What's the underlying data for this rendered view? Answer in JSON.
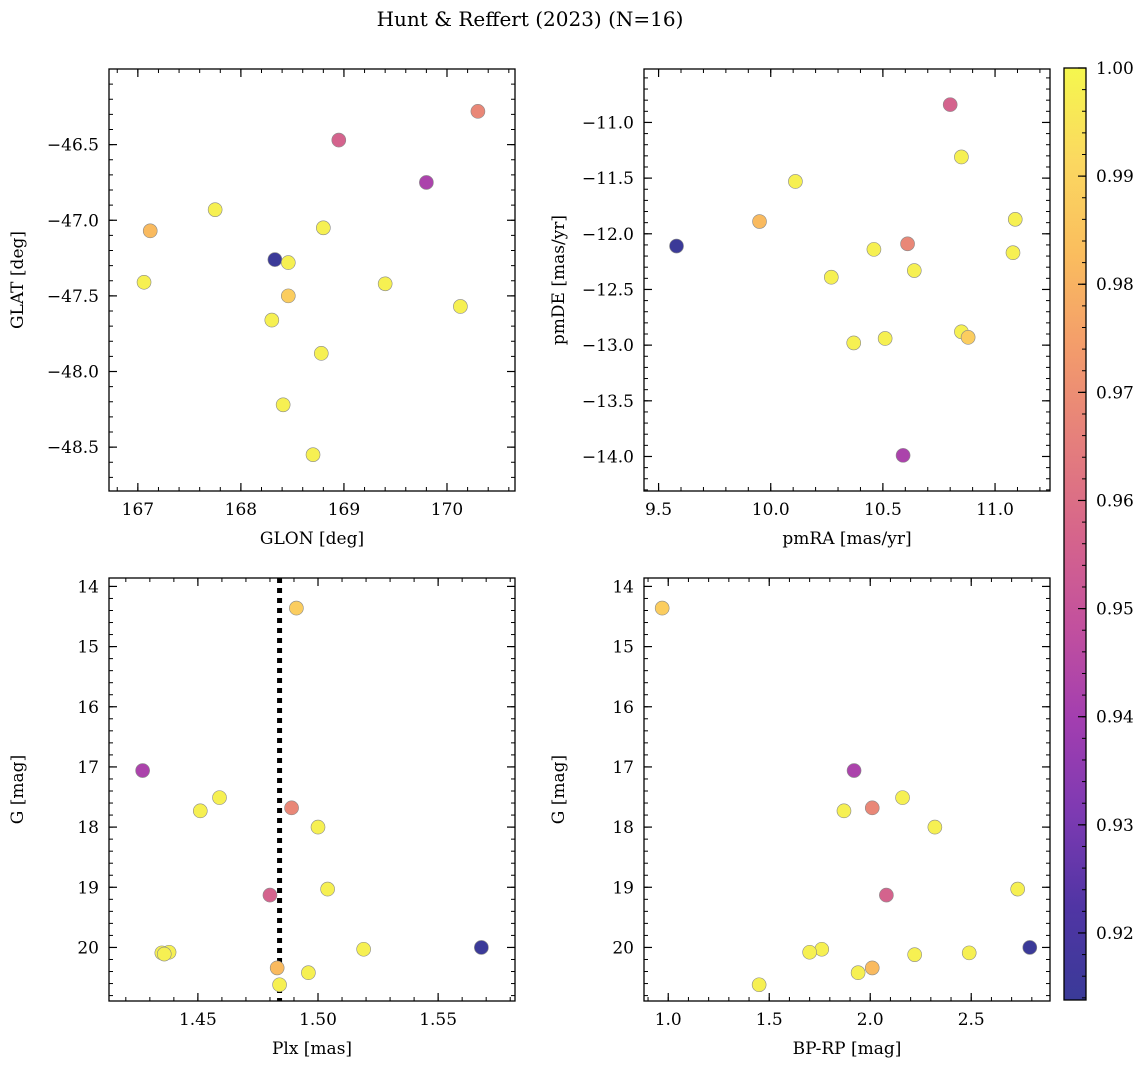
{
  "figure": {
    "title": "Hunt & Reffert (2023) (N=16)"
  },
  "colorbar": {
    "range": [
      0.9138,
      1.0
    ],
    "ticks": [
      "0.92",
      "0.93",
      "0.94",
      "0.95",
      "0.96",
      "0.97",
      "0.98",
      "0.99",
      "1.00"
    ],
    "tick_values": [
      0.92,
      0.93,
      0.94,
      0.95,
      0.96,
      0.97,
      0.98,
      0.99,
      1.0
    ],
    "colormap": "plasma (truncated)",
    "colormap_stops": [
      "#3a3a98",
      "#5035a4",
      "#7d3ab2",
      "#a23eb0",
      "#c2509e",
      "#d6658b",
      "#e57f7c",
      "#f39c6b",
      "#fabd5e",
      "#fbd860",
      "#f5f74e"
    ]
  },
  "chart_data": [
    {
      "type": "scatter",
      "xlabel": "GLON [deg]",
      "ylabel": "GLAT [deg]",
      "xlim": [
        166.72,
        170.66
      ],
      "ylim": [
        -48.79,
        -46.0
      ],
      "invert_y": false,
      "xticks": [
        167,
        168,
        169,
        170
      ],
      "xtick_labels": [
        "167",
        "168",
        "169",
        "170"
      ],
      "yticks": [
        -46.5,
        -47.0,
        -47.5,
        -48.0,
        -48.5
      ],
      "ytick_labels": [
        "−46.5",
        "−47.0",
        "−47.5",
        "−48.0",
        "−48.5"
      ],
      "points": [
        {
          "x": 170.3,
          "y": -46.28,
          "c": 0.968
        },
        {
          "x": 168.95,
          "y": -46.47,
          "c": 0.956
        },
        {
          "x": 169.8,
          "y": -46.75,
          "c": 0.942
        },
        {
          "x": 167.75,
          "y": -46.93,
          "c": 0.998
        },
        {
          "x": 167.12,
          "y": -47.07,
          "c": 0.982
        },
        {
          "x": 168.8,
          "y": -47.05,
          "c": 0.998
        },
        {
          "x": 168.33,
          "y": -47.26,
          "c": 0.914
        },
        {
          "x": 168.46,
          "y": -47.28,
          "c": 0.998
        },
        {
          "x": 167.06,
          "y": -47.41,
          "c": 0.998
        },
        {
          "x": 169.4,
          "y": -47.42,
          "c": 0.998
        },
        {
          "x": 168.46,
          "y": -47.5,
          "c": 0.988
        },
        {
          "x": 170.13,
          "y": -47.57,
          "c": 0.998
        },
        {
          "x": 168.3,
          "y": -47.66,
          "c": 0.998
        },
        {
          "x": 168.78,
          "y": -47.88,
          "c": 0.998
        },
        {
          "x": 168.41,
          "y": -48.22,
          "c": 0.998
        },
        {
          "x": 168.7,
          "y": -48.55,
          "c": 0.998
        }
      ]
    },
    {
      "type": "scatter",
      "xlabel": "pmRA [mas/yr]",
      "ylabel": "pmDE [mas/yr]",
      "xlim": [
        9.435,
        11.245
      ],
      "ylim": [
        -14.31,
        -10.52
      ],
      "invert_y": false,
      "xticks": [
        9.5,
        10.0,
        10.5,
        11.0
      ],
      "xtick_labels": [
        "9.5",
        "10.0",
        "10.5",
        "11.0"
      ],
      "yticks": [
        -11.0,
        -11.5,
        -12.0,
        -12.5,
        -13.0,
        -13.5,
        -14.0
      ],
      "ytick_labels": [
        "−11.0",
        "−11.5",
        "−12.0",
        "−12.5",
        "−13.0",
        "−13.5",
        "−14.0"
      ],
      "points": [
        {
          "x": 10.8,
          "y": -10.84,
          "c": 0.956
        },
        {
          "x": 10.85,
          "y": -11.31,
          "c": 0.998
        },
        {
          "x": 10.11,
          "y": -11.53,
          "c": 0.998
        },
        {
          "x": 9.95,
          "y": -11.89,
          "c": 0.982
        },
        {
          "x": 11.09,
          "y": -11.87,
          "c": 0.998
        },
        {
          "x": 9.58,
          "y": -12.11,
          "c": 0.914
        },
        {
          "x": 10.61,
          "y": -12.09,
          "c": 0.968
        },
        {
          "x": 10.46,
          "y": -12.14,
          "c": 0.998
        },
        {
          "x": 11.08,
          "y": -12.17,
          "c": 0.998
        },
        {
          "x": 10.64,
          "y": -12.33,
          "c": 0.998
        },
        {
          "x": 10.27,
          "y": -12.39,
          "c": 0.998
        },
        {
          "x": 10.85,
          "y": -12.88,
          "c": 0.998
        },
        {
          "x": 10.88,
          "y": -12.93,
          "c": 0.988
        },
        {
          "x": 10.51,
          "y": -12.94,
          "c": 0.998
        },
        {
          "x": 10.37,
          "y": -12.98,
          "c": 0.998
        },
        {
          "x": 10.59,
          "y": -13.99,
          "c": 0.942
        }
      ]
    },
    {
      "type": "scatter",
      "xlabel": "Plx [mas]",
      "ylabel": "G [mag]",
      "xlim": [
        1.413,
        1.582
      ],
      "ylim": [
        13.86,
        20.89
      ],
      "invert_y": true,
      "xticks": [
        1.45,
        1.5,
        1.55
      ],
      "xtick_labels": [
        "1.45",
        "1.50",
        "1.55"
      ],
      "yticks": [
        14,
        15,
        16,
        17,
        18,
        19,
        20
      ],
      "ytick_labels": [
        "14",
        "15",
        "16",
        "17",
        "18",
        "19",
        "20"
      ],
      "vline": 1.484,
      "points": [
        {
          "x": 1.491,
          "y": 14.36,
          "c": 0.988
        },
        {
          "x": 1.427,
          "y": 17.06,
          "c": 0.942
        },
        {
          "x": 1.459,
          "y": 17.51,
          "c": 0.998
        },
        {
          "x": 1.451,
          "y": 17.73,
          "c": 0.998
        },
        {
          "x": 1.489,
          "y": 17.68,
          "c": 0.968
        },
        {
          "x": 1.5,
          "y": 18.0,
          "c": 0.998
        },
        {
          "x": 1.504,
          "y": 19.03,
          "c": 0.998
        },
        {
          "x": 1.48,
          "y": 19.13,
          "c": 0.956
        },
        {
          "x": 1.568,
          "y": 20.0,
          "c": 0.914
        },
        {
          "x": 1.519,
          "y": 20.03,
          "c": 0.998
        },
        {
          "x": 1.438,
          "y": 20.08,
          "c": 0.998
        },
        {
          "x": 1.435,
          "y": 20.09,
          "c": 0.998
        },
        {
          "x": 1.436,
          "y": 20.11,
          "c": 0.998
        },
        {
          "x": 1.483,
          "y": 20.34,
          "c": 0.982
        },
        {
          "x": 1.496,
          "y": 20.42,
          "c": 0.998
        },
        {
          "x": 1.484,
          "y": 20.62,
          "c": 0.998
        }
      ]
    },
    {
      "type": "scatter",
      "xlabel": "BP-RP [mag]",
      "ylabel": "G [mag]",
      "xlim": [
        0.88,
        2.89
      ],
      "ylim": [
        13.86,
        20.89
      ],
      "invert_y": true,
      "xticks": [
        1.0,
        1.5,
        2.0,
        2.5
      ],
      "xtick_labels": [
        "1.0",
        "1.5",
        "2.0",
        "2.5"
      ],
      "yticks": [
        14,
        15,
        16,
        17,
        18,
        19,
        20
      ],
      "ytick_labels": [
        "14",
        "15",
        "16",
        "17",
        "18",
        "19",
        "20"
      ],
      "points": [
        {
          "x": 0.97,
          "y": 14.36,
          "c": 0.988
        },
        {
          "x": 1.92,
          "y": 17.06,
          "c": 0.942
        },
        {
          "x": 2.16,
          "y": 17.51,
          "c": 0.998
        },
        {
          "x": 1.87,
          "y": 17.73,
          "c": 0.998
        },
        {
          "x": 2.01,
          "y": 17.68,
          "c": 0.968
        },
        {
          "x": 2.32,
          "y": 18.0,
          "c": 0.998
        },
        {
          "x": 2.73,
          "y": 19.03,
          "c": 0.998
        },
        {
          "x": 2.08,
          "y": 19.13,
          "c": 0.956
        },
        {
          "x": 2.79,
          "y": 20.0,
          "c": 0.914
        },
        {
          "x": 1.76,
          "y": 20.03,
          "c": 0.998
        },
        {
          "x": 1.7,
          "y": 20.08,
          "c": 0.998
        },
        {
          "x": 2.49,
          "y": 20.09,
          "c": 0.998
        },
        {
          "x": 2.22,
          "y": 20.12,
          "c": 0.998
        },
        {
          "x": 2.01,
          "y": 20.34,
          "c": 0.982
        },
        {
          "x": 1.94,
          "y": 20.42,
          "c": 0.998
        },
        {
          "x": 1.45,
          "y": 20.62,
          "c": 0.998
        }
      ]
    }
  ]
}
